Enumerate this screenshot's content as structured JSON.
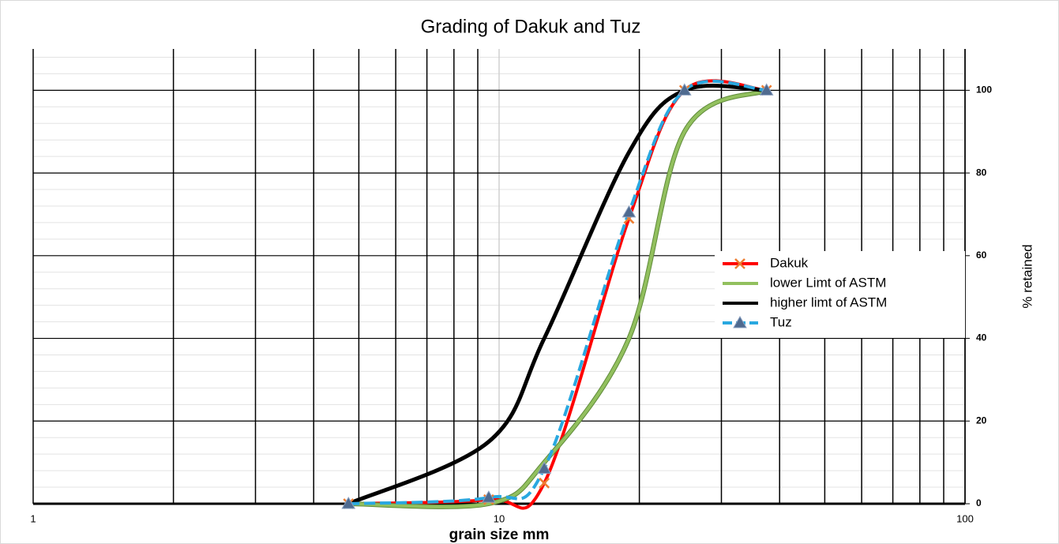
{
  "chart_data": {
    "type": "line",
    "title": "Grading of Dakuk and Tuz",
    "x_label": "grain size mm",
    "y_label": "% retained",
    "x": [
      4.75,
      9.5,
      12.5,
      19,
      25,
      37.5
    ],
    "xlog": true,
    "xlim": [
      1,
      100
    ],
    "xticks": [
      1,
      10,
      100
    ],
    "ylim": [
      0,
      110
    ],
    "yticks": [
      0,
      20,
      40,
      60,
      80,
      100
    ],
    "y_axis_side": "right",
    "grid": true,
    "legend": "right",
    "series": [
      {
        "name": "Dakuk",
        "color": "#ff0000",
        "marker": "x",
        "marker_color": "#ed7d31",
        "values": [
          0,
          1,
          5,
          69,
          100,
          100
        ]
      },
      {
        "name": "lower Limt of ASTM",
        "color": "#92c05e",
        "values": [
          0,
          0,
          10,
          40,
          90,
          100
        ]
      },
      {
        "name": "higher limt of ASTM",
        "color": "#000000",
        "values": [
          0,
          15,
          40,
          85,
          100,
          100
        ]
      },
      {
        "name": "Tuz",
        "color": "#29a8e0",
        "dashed": true,
        "marker": "triangle",
        "marker_color": "#4f6a8f",
        "values": [
          0,
          1.5,
          8.5,
          70.5,
          100,
          100
        ]
      }
    ]
  }
}
